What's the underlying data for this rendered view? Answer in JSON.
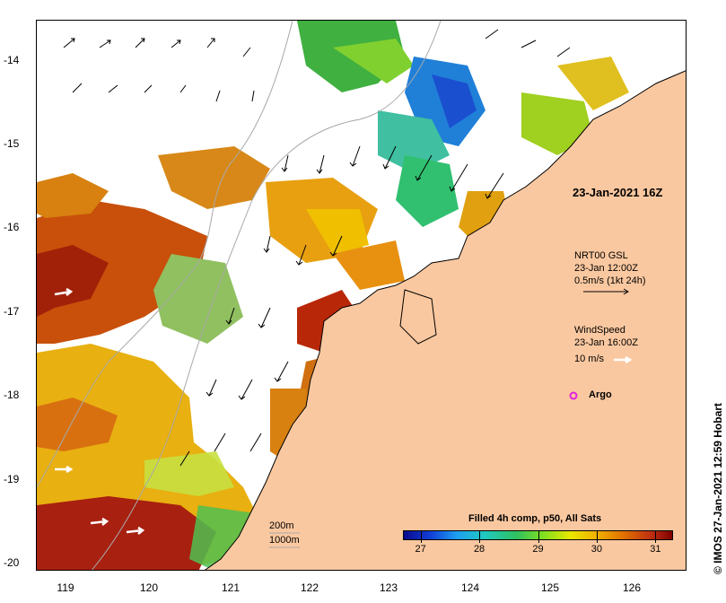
{
  "map": {
    "lat_labels": [
      "-14",
      "-15",
      "-16",
      "-17",
      "-18",
      "-19",
      "-20"
    ],
    "lon_labels": [
      "119",
      "120",
      "121",
      "122",
      "123",
      "124",
      "125",
      "126"
    ],
    "lat_range": [
      -20.1,
      -13.5
    ],
    "lon_range": [
      118.7,
      126.7
    ]
  },
  "annotations": {
    "product_time": "23-Jan-2021 16Z",
    "current_source": "NRT00 GSL",
    "current_time": "23-Jan 12:00Z",
    "current_scale": "0.5m/s (1kt 24h)",
    "wind_title": "WindSpeed",
    "wind_time": "23-Jan 16:00Z",
    "wind_scale": "10 m/s",
    "argo_label": "Argo",
    "isobath_200": "200m",
    "isobath_1000": "1000m",
    "credit": "© IMOS 27-Jan-2021 12:59 Hobart"
  },
  "colorbar": {
    "title": "Filled 4h comp, p50, All Sats",
    "ticks": [
      "27",
      "28",
      "29",
      "30",
      "31"
    ],
    "min": 26.7,
    "max": 31.3
  },
  "colors": {
    "land": "#fac8a0",
    "argo": "#e020e0",
    "isobath": "#a8a8a8"
  }
}
